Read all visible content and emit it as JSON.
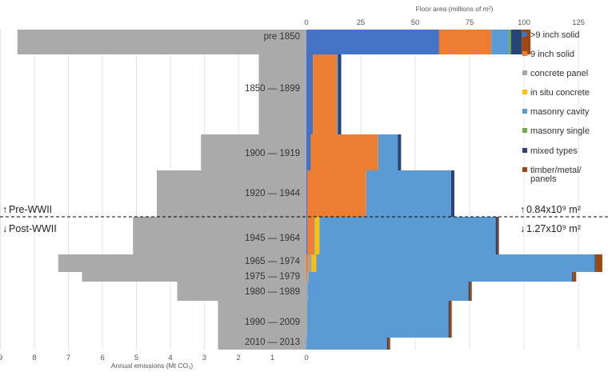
{
  "chart_data": {
    "type": "bar",
    "subtype": "population-pyramid",
    "periods": [
      "pre 1850",
      "1850 — 1899",
      "1900 — 1919",
      "1920 — 1944",
      "1945 — 1964",
      "1965 — 1974",
      "1975 — 1979",
      "1980 — 1989",
      "1990 — 2009",
      "2010 — 2013"
    ],
    "left_axis": {
      "label": "Annual emissions (Mt CO₂)",
      "ticks": [
        "9",
        "8",
        "7",
        "6",
        "5",
        "4",
        "3",
        "2",
        "1",
        "0"
      ],
      "range": [
        0,
        9
      ],
      "grid": true
    },
    "left_series": {
      "name": "Annual emissions",
      "color": "#aaaaaa",
      "values": [
        8.5,
        1.4,
        3.1,
        4.4,
        5.1,
        7.3,
        6.6,
        3.8,
        2.6,
        2.6
      ]
    },
    "right_axis": {
      "label": "Floor area (millions of m²)",
      "ticks": [
        "0",
        "25",
        "50",
        "75",
        "100",
        "125"
      ],
      "range": [
        0,
        125
      ],
      "grid": true
    },
    "right_series": [
      {
        "name": ">9 inch solid",
        "color": "#4472c4",
        "values": [
          61,
          3,
          2,
          0.5,
          0.5,
          0,
          0,
          0,
          0,
          0
        ]
      },
      {
        "name": "9 inch solid",
        "color": "#ed7d31",
        "values": [
          24,
          11,
          31,
          27,
          3,
          1,
          0.5,
          0,
          0,
          0
        ]
      },
      {
        "name": "concrete panel",
        "color": "#a5a5a5",
        "values": [
          0,
          0,
          0,
          0,
          0.5,
          1.5,
          0.5,
          0.5,
          0.3,
          0
        ]
      },
      {
        "name": "in situ concrete",
        "color": "#ffc000",
        "values": [
          0,
          0,
          0,
          0,
          2,
          2,
          0,
          0,
          0,
          0
        ]
      },
      {
        "name": "masonry cavity",
        "color": "#5b9bd5",
        "values": [
          8,
          0.5,
          9,
          39,
          81,
          128,
          121,
          74,
          65,
          37
        ]
      },
      {
        "name": "masonry single",
        "color": "#70ad47",
        "values": [
          1,
          0,
          0,
          0,
          0,
          0,
          0,
          0,
          0,
          0
        ]
      },
      {
        "name": "mixed types",
        "color": "#264478",
        "values": [
          5,
          1.5,
          1.5,
          1.5,
          1,
          0.5,
          0.5,
          0.5,
          0.5,
          0.5
        ]
      },
      {
        "name": "timber/metal/panels",
        "color": "#9e480e",
        "values": [
          4,
          0,
          0,
          0,
          0.5,
          3,
          1.5,
          1,
          1,
          1
        ]
      }
    ],
    "legend": {
      "position": "right",
      "items": [
        ">9 inch solid",
        "9 inch solid",
        "concrete panel",
        "in situ concrete",
        "masonry cavity",
        "masonry single",
        "mixed types",
        "timber/metal/panels"
      ]
    },
    "annotations": {
      "pre_label": "Pre-WWII",
      "post_label": "Post-WWII",
      "pre_total": "0.84x10⁹ m²",
      "post_total": "1.27x10⁹ m²",
      "arrow_up": "↑",
      "arrow_down": "↓"
    }
  }
}
